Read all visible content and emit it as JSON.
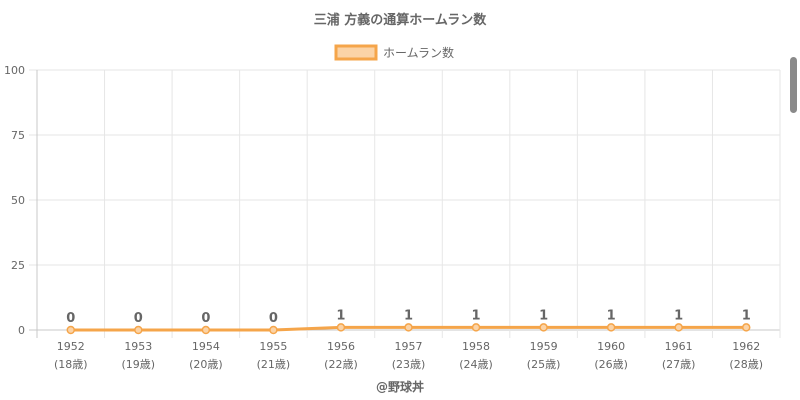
{
  "chart_data": {
    "type": "line",
    "title": "三浦 方義の通算ホームラン数",
    "legend": {
      "label": "ホームラン数",
      "placement": "top-center"
    },
    "x": [
      "1952",
      "1953",
      "1954",
      "1955",
      "1956",
      "1957",
      "1958",
      "1959",
      "1960",
      "1961",
      "1962"
    ],
    "x_sublabels": [
      "(18歳)",
      "(19歳)",
      "(20歳)",
      "(21歳)",
      "(22歳)",
      "(23歳)",
      "(24歳)",
      "(25歳)",
      "(26歳)",
      "(27歳)",
      "(28歳)"
    ],
    "series": [
      {
        "name": "ホームラン数",
        "values": [
          0,
          0,
          0,
          0,
          1,
          1,
          1,
          1,
          1,
          1,
          1
        ]
      }
    ],
    "data_labels": [
      "0",
      "0",
      "0",
      "0",
      "1",
      "1",
      "1",
      "1",
      "1",
      "1",
      "1"
    ],
    "ylim": [
      0,
      100
    ],
    "yticks": [
      0,
      25,
      50,
      75,
      100
    ],
    "grid": true,
    "footer": "@野球丼",
    "colors": {
      "line": "#f5a54a",
      "fill": "#fbd3a6",
      "grid": "#e6e6e6",
      "text": "#666666"
    }
  }
}
